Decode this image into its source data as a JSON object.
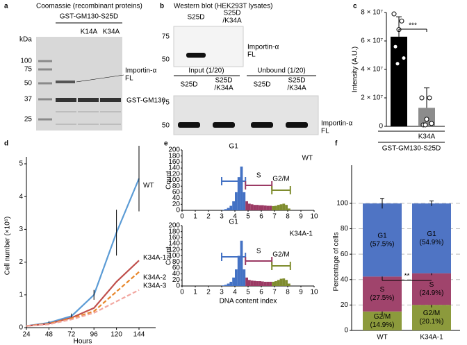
{
  "gel_a": {
    "panel_label": "a",
    "title": "Coomassie (recombinant proteins)",
    "construct": "GST-GM130-S25D",
    "lanes": [
      "K14A",
      "K34A"
    ],
    "unit": "kDa",
    "markers": [
      100,
      75,
      50,
      37,
      25
    ],
    "band_labels": [
      [
        "Importin-α",
        "FL"
      ],
      [
        "GST-GM130"
      ]
    ]
  },
  "gel_b": {
    "panel_label": "b",
    "title": "Western blot (HEK293T lysates)",
    "top": {
      "lanes": [
        [
          "S25D"
        ],
        [
          "S25D",
          "/K34A"
        ]
      ],
      "markers": [
        75,
        50
      ],
      "band_label": [
        "Importin-α",
        "FL"
      ]
    },
    "bottom": {
      "groups": [
        "Input (1/20)",
        "Unbound (1/20)"
      ],
      "lanes": [
        [
          "S25D"
        ],
        [
          "S25D",
          "/K34A"
        ],
        [
          "S25D"
        ],
        [
          "S25D",
          "/K34A"
        ]
      ],
      "markers": [
        75,
        50
      ],
      "band_label": [
        "Importin-α",
        "FL"
      ]
    }
  },
  "chart_data": [
    {
      "type": "bar",
      "panel_label": "c",
      "ylabel": "Intensity (A.U.)",
      "categories": [
        null,
        "K34A"
      ],
      "group_label": "GST-GM130-S25D",
      "values": [
        63000000,
        13000000
      ],
      "errors": [
        14000000,
        14000000
      ],
      "colors": [
        "#000000",
        "#8c8c8c"
      ],
      "points": [
        [
          79000000,
          74000000,
          68000000,
          56000000,
          48000000,
          44000000
        ],
        [
          20000000,
          20000000,
          5000000,
          1000000,
          2000000,
          1000000
        ]
      ],
      "significance": "***",
      "ylim": [
        0,
        80000000
      ],
      "yticks": [
        0,
        {
          "value": 20000000,
          "label": "2 × 10⁷"
        },
        {
          "value": 40000000,
          "label": "4 × 10⁷"
        },
        {
          "value": 60000000,
          "label": "6 × 10⁷"
        },
        {
          "value": 80000000,
          "label": "8 × 10⁷"
        }
      ]
    },
    {
      "type": "line",
      "panel_label": "d",
      "ylabel": "Cell number (×10⁶)",
      "xlabel": "Hours",
      "x": [
        24,
        48,
        72,
        96,
        120,
        144
      ],
      "xlim": [
        24,
        144
      ],
      "xticks": [
        24,
        48,
        72,
        96,
        120,
        144
      ],
      "ylim": [
        0,
        5
      ],
      "yticks": [
        0,
        1,
        2,
        3,
        4,
        5
      ],
      "series": [
        {
          "name": "WT",
          "color": "#5b9bd5",
          "line_style": "solid",
          "values": [
            0.05,
            0.15,
            0.35,
            1.0,
            2.9,
            4.55
          ],
          "errors": [
            0.02,
            0.05,
            0.08,
            0.15,
            0.7,
            1.0
          ]
        },
        {
          "name": "K34A-1",
          "color": "#c0504d",
          "line_style": "solid",
          "values": [
            0.05,
            0.12,
            0.3,
            0.6,
            1.4,
            2.05
          ]
        },
        {
          "name": "K34A-2",
          "color": "#e8862a",
          "line_style": "dashed",
          "values": [
            0.05,
            0.12,
            0.28,
            0.5,
            1.1,
            1.7
          ]
        },
        {
          "name": "K34A-3",
          "color": "#f2a7a0",
          "line_style": "dashed",
          "values": [
            0.05,
            0.1,
            0.25,
            0.45,
            0.8,
            1.15
          ]
        }
      ]
    },
    {
      "type": "histogram",
      "panel_label": "e",
      "sample": "WT",
      "sample_color": "#4472c4",
      "ylabel": "Count",
      "xlim": [
        0,
        10
      ],
      "xticks": [
        0,
        1,
        2,
        3,
        4,
        5,
        6,
        7,
        8,
        9,
        10
      ],
      "ylim": [
        0,
        200
      ],
      "yticks": [
        0,
        20,
        40,
        60,
        80,
        100,
        120,
        140,
        160,
        180,
        200
      ],
      "series": [
        {
          "name": "G1",
          "color": "#4472c4",
          "bins": [
            3.0,
            3.2,
            3.4,
            3.6,
            3.8,
            4.0,
            4.2,
            4.4,
            4.6,
            4.8
          ],
          "counts": [
            2,
            4,
            8,
            15,
            30,
            60,
            110,
            145,
            60
          ]
        },
        {
          "name": "S",
          "color": "#9b3a64",
          "bins": [
            4.8,
            5.0,
            5.2,
            5.4,
            5.6,
            5.8,
            6.0,
            6.2,
            6.4,
            6.6,
            6.8
          ],
          "counts": [
            30,
            22,
            20,
            18,
            18,
            17,
            17,
            16,
            15,
            15
          ]
        },
        {
          "name": "G2/M",
          "color": "#7f8c2e",
          "bins": [
            6.8,
            7.0,
            7.2,
            7.4,
            7.6,
            7.8,
            8.0,
            8.2
          ],
          "counts": [
            14,
            15,
            18,
            20,
            22,
            18,
            6
          ]
        }
      ]
    },
    {
      "type": "histogram",
      "sample": "K34A-1",
      "sample_color": "#c0504d",
      "ylabel": "Count",
      "xlabel": "DNA content index",
      "xlim": [
        0,
        10
      ],
      "xticks": [
        0,
        1,
        2,
        3,
        4,
        5,
        6,
        7,
        8,
        9,
        10
      ],
      "ylim": [
        0,
        200
      ],
      "yticks": [
        0,
        20,
        40,
        60,
        80,
        100,
        120,
        140,
        160,
        180,
        200
      ],
      "series": [
        {
          "name": "G1",
          "color": "#4472c4",
          "bins": [
            3.0,
            3.2,
            3.4,
            3.6,
            3.8,
            4.0,
            4.2,
            4.4,
            4.6,
            4.8
          ],
          "counts": [
            2,
            4,
            8,
            14,
            28,
            55,
            100,
            150,
            55
          ]
        },
        {
          "name": "S",
          "color": "#9b3a64",
          "bins": [
            4.8,
            5.0,
            5.2,
            5.4,
            5.6,
            5.8,
            6.0,
            6.2,
            6.4,
            6.6,
            6.8
          ],
          "counts": [
            28,
            20,
            18,
            17,
            16,
            16,
            15,
            14,
            14,
            14
          ]
        },
        {
          "name": "G2/M",
          "color": "#7f8c2e",
          "bins": [
            6.8,
            7.0,
            7.2,
            7.4,
            7.6,
            7.8,
            8.0,
            8.2
          ],
          "counts": [
            14,
            16,
            20,
            24,
            25,
            20,
            8
          ]
        }
      ]
    },
    {
      "type": "stacked_bar",
      "panel_label": "f",
      "ylabel": "Percentage of cells",
      "categories": [
        "WT",
        "K34A-1"
      ],
      "category_colors": [
        "#4472c4",
        "#c0504d"
      ],
      "ylim": [
        0,
        130
      ],
      "yticks": [
        0,
        20,
        40,
        60,
        80,
        100
      ],
      "grid": true,
      "significance": "**",
      "series": [
        {
          "name": "G2/M",
          "color": "#8c9a3c",
          "values": [
            14.9,
            20.1
          ],
          "value_labels": [
            "(14.9%)",
            "(20.1%)"
          ],
          "errors": [
            4,
            2
          ]
        },
        {
          "name": "S",
          "color": "#a0446c",
          "values": [
            27.5,
            24.9
          ],
          "value_labels": [
            "(27.5%)",
            "(24.9%)"
          ],
          "errors": [
            3,
            1.5
          ]
        },
        {
          "name": "G1",
          "color": "#4f74c4",
          "values": [
            57.5,
            54.9
          ],
          "value_labels": [
            "(57.5%)",
            "(54.9%)"
          ],
          "errors": [
            4,
            2
          ]
        }
      ]
    }
  ]
}
